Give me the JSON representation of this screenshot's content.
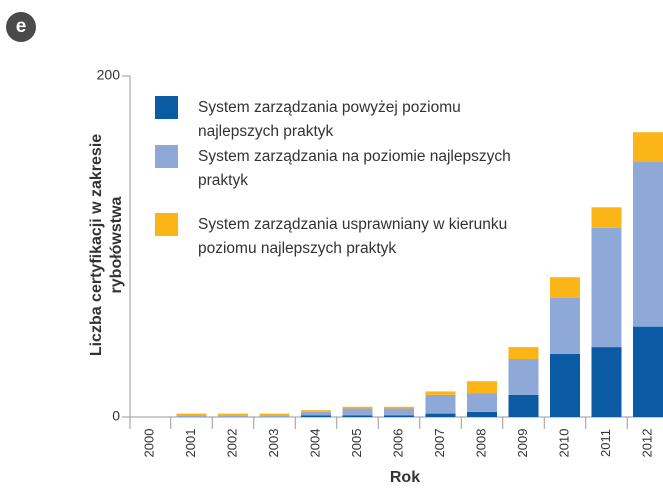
{
  "panel_label": "e",
  "chart_data": {
    "type": "stacked_bar",
    "xlabel": "Rok",
    "ylabel": "Liczba certyfikacji w zakresie rybołówstwa",
    "categories": [
      "2000",
      "2001",
      "2002",
      "2003",
      "2004",
      "2005",
      "2006",
      "2007",
      "2008",
      "2009",
      "2010",
      "2011",
      "2012"
    ],
    "series": [
      {
        "name": "System zarządzania powyżej poziomu najlepszych praktyk",
        "color": "#0a5aa4",
        "values": [
          0,
          0,
          0,
          0,
          1,
          1,
          1,
          2,
          3,
          13,
          37,
          41,
          53
        ]
      },
      {
        "name": "System zarządzania na poziomie najlepszych praktyk",
        "color": "#8ea8d8",
        "values": [
          0,
          1,
          1,
          1,
          2,
          4,
          4,
          11,
          11,
          21,
          33,
          70,
          97
        ]
      },
      {
        "name": "System zarządzania usprawniany w kierunku poziomu najlepszych praktyk",
        "color": "#fbb516",
        "values": [
          0,
          1,
          1,
          1,
          1,
          1,
          1,
          2,
          7,
          7,
          12,
          12,
          17
        ]
      }
    ],
    "ylim": [
      0,
      200
    ],
    "yticks": [
      0,
      200
    ],
    "legend": "upper left"
  }
}
